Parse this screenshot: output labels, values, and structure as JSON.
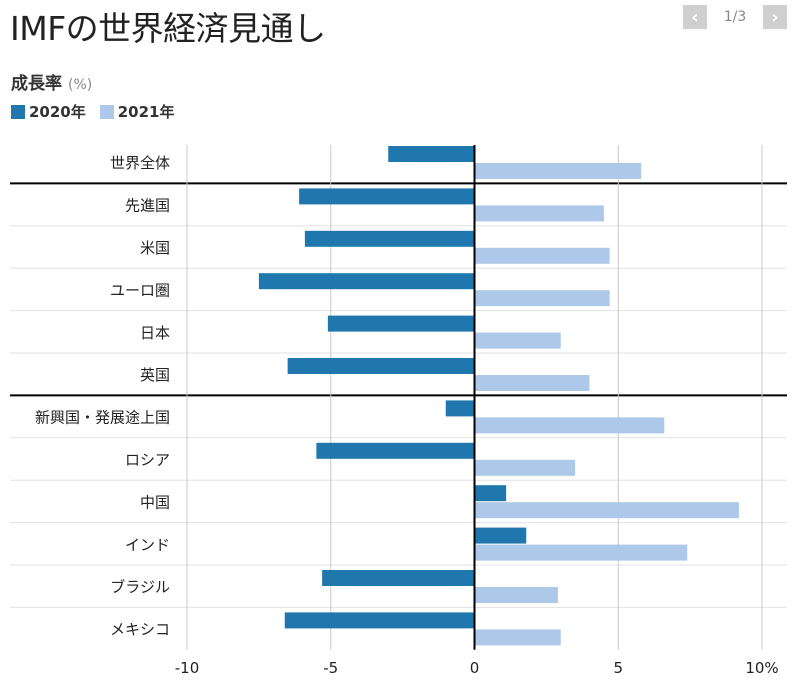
{
  "header": {
    "title": "IMFの世界経済見通し",
    "pager": {
      "count": "1/3",
      "prev_icon": "chevron-left-icon",
      "next_icon": "chevron-right-icon"
    }
  },
  "colors": {
    "series_2020": "#1f77ad",
    "series_2021": "#adc8e8",
    "axis": "#000000",
    "grid": "#c8c8c8"
  },
  "chart_data": {
    "type": "bar",
    "orientation": "horizontal",
    "title": "成長率",
    "unit_label": "(%)",
    "categories": [
      "世界全体",
      "先進国",
      "米国",
      "ユーロ圏",
      "日本",
      "英国",
      "新興国・発展途上国",
      "ロシア",
      "中国",
      "インド",
      "ブラジル",
      "メキシコ"
    ],
    "series": [
      {
        "name": "2020年",
        "values": [
          -3.0,
          -6.1,
          -5.9,
          -7.5,
          -5.1,
          -6.5,
          -1.0,
          -5.5,
          1.1,
          1.8,
          -5.3,
          -6.6
        ]
      },
      {
        "name": "2021年",
        "values": [
          5.8,
          4.5,
          4.7,
          4.7,
          3.0,
          4.0,
          6.6,
          3.5,
          9.2,
          7.4,
          2.9,
          3.0
        ]
      }
    ],
    "xlim": [
      -10,
      10
    ],
    "xticks": [
      -10,
      -5,
      0,
      5,
      10
    ],
    "xtick_labels": [
      "-10",
      "-5",
      "0",
      "5",
      "10%"
    ],
    "group_separators_after": [
      "世界全体",
      "英国"
    ],
    "legend_position": "top-left"
  }
}
